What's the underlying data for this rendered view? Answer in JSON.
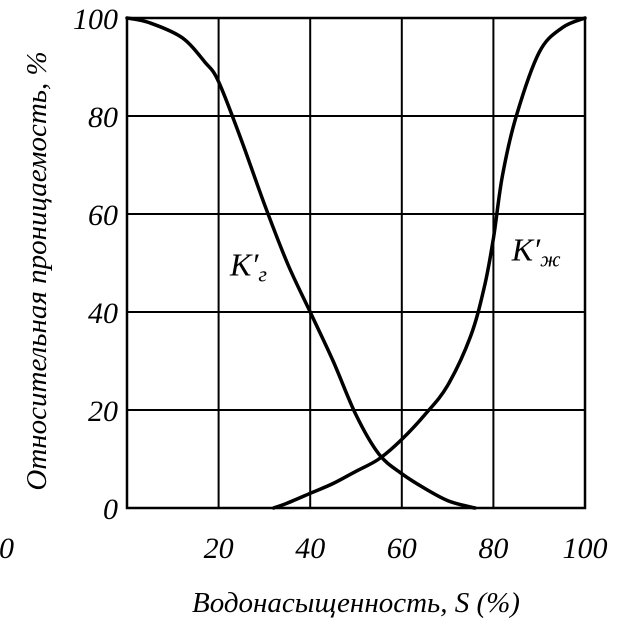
{
  "chart_data": {
    "type": "line",
    "xlabel": "Водонасыщенность, S (%)",
    "ylabel": "Относительная проницаемость, %",
    "xlim": [
      0,
      100
    ],
    "ylim": [
      0,
      100
    ],
    "x_ticks": [
      "0",
      "20",
      "40",
      "60",
      "80",
      "100"
    ],
    "y_ticks": [
      "0",
      "20",
      "40",
      "60",
      "80",
      "100"
    ],
    "grid": true,
    "series": [
      {
        "name": "K′г",
        "label_main": "K′",
        "label_sub": "г",
        "x": [
          0,
          5,
          12,
          17,
          20,
          25,
          30,
          35,
          40,
          45,
          50,
          55,
          60,
          65,
          70,
          75,
          76
        ],
        "y": [
          100,
          99,
          96,
          91,
          87,
          75,
          62,
          50,
          40,
          30,
          19,
          11,
          7,
          4,
          1.5,
          0.2,
          0
        ]
      },
      {
        "name": "K′ж",
        "label_main": "K′",
        "label_sub": "ж",
        "x": [
          32,
          35,
          40,
          45,
          50,
          55,
          60,
          65,
          70,
          75,
          78,
          80,
          82,
          85,
          90,
          95,
          100
        ],
        "y": [
          0,
          1,
          3,
          5,
          7.5,
          10,
          14,
          19,
          25,
          35,
          45,
          55,
          68,
          80,
          93,
          98,
          100
        ]
      }
    ]
  }
}
